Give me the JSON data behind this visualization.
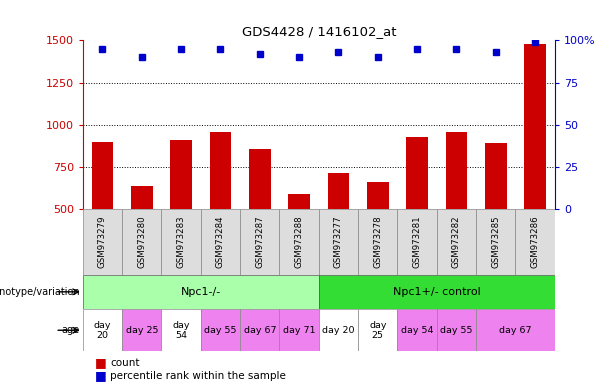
{
  "title": "GDS4428 / 1416102_at",
  "samples": [
    "GSM973279",
    "GSM973280",
    "GSM973283",
    "GSM973284",
    "GSM973287",
    "GSM973288",
    "GSM973277",
    "GSM973278",
    "GSM973281",
    "GSM973282",
    "GSM973285",
    "GSM973286"
  ],
  "counts": [
    900,
    635,
    910,
    960,
    855,
    590,
    715,
    660,
    930,
    955,
    895,
    1480
  ],
  "percentile_ranks": [
    95,
    90,
    95,
    95,
    92,
    90,
    93,
    90,
    95,
    95,
    93,
    99
  ],
  "ylim_left": [
    500,
    1500
  ],
  "ylim_right": [
    0,
    100
  ],
  "yticks_left": [
    500,
    750,
    1000,
    1250,
    1500
  ],
  "yticks_right": [
    0,
    25,
    50,
    75,
    100
  ],
  "bar_color": "#cc0000",
  "dot_color": "#0000cc",
  "genotype_groups": [
    {
      "label": "Npc1-/-",
      "start": 0,
      "end": 6,
      "color": "#aaffaa"
    },
    {
      "label": "Npc1+/- control",
      "start": 6,
      "end": 12,
      "color": "#33dd33"
    }
  ],
  "age_spans": [
    {
      "label": "day\n20",
      "start": 0,
      "end": 1,
      "color": "#ffffff"
    },
    {
      "label": "day 25",
      "start": 1,
      "end": 2,
      "color": "#ee82ee"
    },
    {
      "label": "day\n54",
      "start": 2,
      "end": 3,
      "color": "#ffffff"
    },
    {
      "label": "day 55",
      "start": 3,
      "end": 4,
      "color": "#ee82ee"
    },
    {
      "label": "day 67",
      "start": 4,
      "end": 5,
      "color": "#ee82ee"
    },
    {
      "label": "day 71",
      "start": 5,
      "end": 6,
      "color": "#ee82ee"
    },
    {
      "label": "day 20",
      "start": 6,
      "end": 7,
      "color": "#ffffff"
    },
    {
      "label": "day\n25",
      "start": 7,
      "end": 8,
      "color": "#ffffff"
    },
    {
      "label": "day 54",
      "start": 8,
      "end": 9,
      "color": "#ee82ee"
    },
    {
      "label": "day 55",
      "start": 9,
      "end": 10,
      "color": "#ee82ee"
    },
    {
      "label": "day 67",
      "start": 10,
      "end": 12,
      "color": "#ee82ee"
    }
  ],
  "background_color": "#ffffff",
  "label_color_left": "#cc0000",
  "label_color_right": "#0000cc",
  "sample_cell_color": "#dddddd",
  "legend_count_color": "#cc0000",
  "legend_percentile_color": "#0000cc"
}
